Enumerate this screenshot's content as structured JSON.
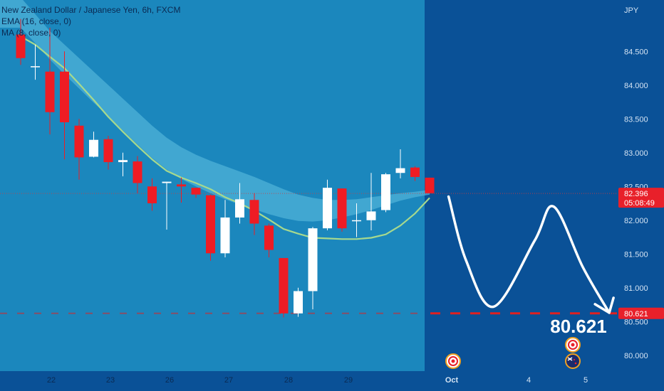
{
  "legend": {
    "line1": "New Zealand Dollar / Japanese Yen, 6h, FXCM",
    "line2": "EMA (16, close, 0)",
    "line3": "MA (8, close, 0)"
  },
  "axis_currency": "JPY",
  "last_price_label": "82.396",
  "countdown_label": "05:08:49",
  "target_price_label": "80.621",
  "target_big_label": "80.621",
  "colors": {
    "background": "#0a5197",
    "history_area": "#1b87bd",
    "band": "#4fb2d8",
    "up_candle": "#ffffff",
    "down_candle": "#ee1c24",
    "ma_line": "#a6d98e",
    "target_line": "#e02020",
    "projection": "#ffffff"
  },
  "icons": [
    "event-target-icon",
    "event-target-icon",
    "new-zealand-flag-icon"
  ],
  "chart_data": {
    "type": "candlestick",
    "title": "New Zealand Dollar / Japanese Yen, 6h, FXCM",
    "ylabel": "JPY",
    "ylim": [
      79.85,
      85.05
    ],
    "y_ticks": [
      "84.500",
      "84.000",
      "83.500",
      "83.000",
      "82.500",
      "82.000",
      "81.500",
      "81.000",
      "80.500",
      "80.000"
    ],
    "x_ticks": [
      "22",
      "23",
      "26",
      "27",
      "28",
      "29",
      "Oct",
      "4",
      "5"
    ],
    "candles": [
      {
        "o": 84.75,
        "h": 84.98,
        "l": 84.3,
        "c": 84.4
      },
      {
        "o": 84.27,
        "h": 84.6,
        "l": 84.08,
        "c": 84.28
      },
      {
        "o": 84.2,
        "h": 84.85,
        "l": 83.27,
        "c": 83.6
      },
      {
        "o": 84.2,
        "h": 84.5,
        "l": 82.9,
        "c": 83.45
      },
      {
        "o": 83.4,
        "h": 83.5,
        "l": 82.6,
        "c": 82.93
      },
      {
        "o": 82.94,
        "h": 83.31,
        "l": 82.93,
        "c": 83.19
      },
      {
        "o": 83.2,
        "h": 83.25,
        "l": 82.75,
        "c": 82.86
      },
      {
        "o": 82.86,
        "h": 83.0,
        "l": 82.65,
        "c": 82.89
      },
      {
        "o": 82.87,
        "h": 82.95,
        "l": 82.4,
        "c": 82.55
      },
      {
        "o": 82.5,
        "h": 82.62,
        "l": 82.14,
        "c": 82.25
      },
      {
        "o": 82.55,
        "h": 82.57,
        "l": 81.86,
        "c": 82.57
      },
      {
        "o": 82.53,
        "h": 82.63,
        "l": 82.26,
        "c": 82.5
      },
      {
        "o": 82.48,
        "h": 82.48,
        "l": 82.33,
        "c": 82.38
      },
      {
        "o": 82.37,
        "h": 82.38,
        "l": 81.4,
        "c": 81.51
      },
      {
        "o": 81.51,
        "h": 82.3,
        "l": 81.45,
        "c": 82.04
      },
      {
        "o": 82.04,
        "h": 82.55,
        "l": 81.95,
        "c": 82.31
      },
      {
        "o": 82.3,
        "h": 82.4,
        "l": 81.78,
        "c": 81.95
      },
      {
        "o": 81.92,
        "h": 81.95,
        "l": 81.45,
        "c": 81.56
      },
      {
        "o": 81.44,
        "h": 81.44,
        "l": 80.56,
        "c": 80.62
      },
      {
        "o": 80.62,
        "h": 81.0,
        "l": 80.57,
        "c": 80.95
      },
      {
        "o": 80.95,
        "h": 81.9,
        "l": 80.68,
        "c": 81.88
      },
      {
        "o": 81.88,
        "h": 82.6,
        "l": 81.85,
        "c": 82.48
      },
      {
        "o": 82.47,
        "h": 82.47,
        "l": 81.83,
        "c": 81.88
      },
      {
        "o": 82.0,
        "h": 82.25,
        "l": 81.75,
        "c": 82.0
      },
      {
        "o": 82.0,
        "h": 82.7,
        "l": 81.85,
        "c": 82.13
      },
      {
        "o": 82.15,
        "h": 82.7,
        "l": 82.12,
        "c": 82.68
      },
      {
        "o": 82.7,
        "h": 83.05,
        "l": 82.62,
        "c": 82.77
      },
      {
        "o": 82.78,
        "h": 82.8,
        "l": 82.58,
        "c": 82.64
      },
      {
        "o": 82.63,
        "h": 82.63,
        "l": 82.4,
        "c": 82.4
      }
    ],
    "ma": [
      84.72,
      84.6,
      84.42,
      84.25,
      84.02,
      83.78,
      83.53,
      83.31,
      83.1,
      82.9,
      82.73,
      82.63,
      82.55,
      82.46,
      82.34,
      82.25,
      82.14,
      82.01,
      81.87,
      81.8,
      81.74,
      81.73,
      81.72,
      81.72,
      81.74,
      81.79,
      81.92,
      82.1,
      82.33
    ],
    "ema_upper": [
      85.3,
      85.05,
      84.8,
      84.6,
      84.4,
      84.2,
      84.0,
      83.8,
      83.6,
      83.4,
      83.22,
      83.08,
      82.97,
      82.88,
      82.8,
      82.72,
      82.64,
      82.55,
      82.46,
      82.38,
      82.33,
      82.3,
      82.3,
      82.31,
      82.34,
      82.37,
      82.4,
      82.42,
      82.45
    ],
    "ema_lower": [
      84.85,
      84.62,
      84.38,
      84.16,
      83.95,
      83.74,
      83.54,
      83.33,
      83.12,
      82.92,
      82.75,
      82.61,
      82.5,
      82.4,
      82.31,
      82.23,
      82.16,
      82.09,
      82.03,
      81.99,
      81.98,
      82.0,
      82.04,
      82.09,
      82.15,
      82.22,
      82.29,
      82.34,
      82.38
    ],
    "last_price": 82.396,
    "target_price": 80.621,
    "projection_path": [
      {
        "t": 29.3,
        "y": 82.35
      },
      {
        "t": 30.5,
        "y": 81.4
      },
      {
        "t": 32.4,
        "y": 80.72
      },
      {
        "t": 35.2,
        "y": 81.7
      },
      {
        "t": 36.5,
        "y": 82.2
      },
      {
        "t": 38.5,
        "y": 81.3
      },
      {
        "t": 40.3,
        "y": 80.63
      }
    ]
  }
}
